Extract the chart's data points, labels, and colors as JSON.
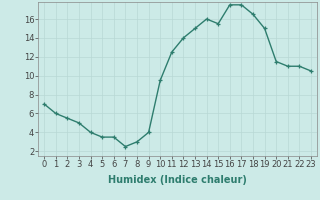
{
  "xlabel": "Humidex (Indice chaleur)",
  "x_values": [
    0,
    1,
    2,
    3,
    4,
    5,
    6,
    7,
    8,
    9,
    10,
    11,
    12,
    13,
    14,
    15,
    16,
    17,
    18,
    19,
    20,
    21,
    22,
    23
  ],
  "y_values": [
    7,
    6,
    5.5,
    5,
    4,
    3.5,
    3.5,
    2.5,
    3,
    4,
    9.5,
    12.5,
    14,
    15,
    16,
    15.5,
    17.5,
    17.5,
    16.5,
    15,
    11.5,
    11,
    11,
    10.5
  ],
  "line_color": "#2e7d6e",
  "marker": "+",
  "bg_color": "#cceae7",
  "grid_color": "#b8d8d5",
  "ylim": [
    1.5,
    17.8
  ],
  "xlim": [
    -0.5,
    23.5
  ],
  "yticks": [
    2,
    4,
    6,
    8,
    10,
    12,
    14,
    16
  ],
  "xtick_labels": [
    "0",
    "1",
    "2",
    "3",
    "4",
    "5",
    "6",
    "7",
    "8",
    "9",
    "10",
    "11",
    "12",
    "13",
    "14",
    "15",
    "16",
    "17",
    "18",
    "19",
    "20",
    "21",
    "22",
    "23"
  ],
  "tick_fontsize": 6,
  "label_fontsize": 7,
  "line_width": 1.0,
  "marker_size": 3
}
